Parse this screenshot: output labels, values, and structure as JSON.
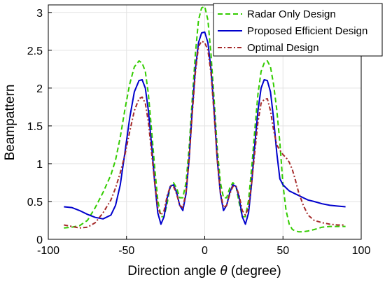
{
  "chart_data": {
    "type": "line",
    "xlabel_prefix": "Direction angle ",
    "xlabel_symbol": "θ",
    "xlabel_suffix": " (degree)",
    "ylabel": "Beampattern",
    "xlim": [
      -100,
      100
    ],
    "ylim": [
      0,
      3.1
    ],
    "xticks": [
      -100,
      -50,
      0,
      50,
      100
    ],
    "yticks": [
      0,
      0.5,
      1,
      1.5,
      2,
      2.5,
      3
    ],
    "xtick_labels": [
      "-100",
      "-50",
      "0",
      "50",
      "100"
    ],
    "ytick_labels": [
      "0",
      "0.5",
      "1",
      "1.5",
      "2",
      "2.5",
      "3"
    ],
    "grid": true,
    "legend_position": "top-right",
    "x": [
      -90,
      -85,
      -80,
      -75,
      -70,
      -65,
      -60,
      -57,
      -54,
      -51,
      -48,
      -45,
      -42,
      -40,
      -38,
      -36,
      -34,
      -32,
      -30,
      -28,
      -26,
      -24,
      -22,
      -20,
      -18,
      -16,
      -14,
      -12,
      -10,
      -8,
      -6,
      -4,
      -2,
      0,
      2,
      4,
      6,
      8,
      10,
      12,
      14,
      16,
      18,
      20,
      22,
      24,
      26,
      28,
      30,
      32,
      34,
      36,
      38,
      40,
      42,
      44,
      46,
      48,
      50,
      52,
      54,
      56,
      58,
      60,
      63,
      66,
      70,
      75,
      80,
      85,
      90
    ],
    "series": [
      {
        "name": "Radar Only Design",
        "color": "#33cc00",
        "dash": "7 4",
        "values": [
          0.15,
          0.16,
          0.18,
          0.25,
          0.42,
          0.62,
          0.85,
          1.05,
          1.35,
          1.72,
          2.05,
          2.28,
          2.36,
          2.33,
          2.22,
          1.92,
          1.45,
          0.95,
          0.52,
          0.3,
          0.3,
          0.48,
          0.7,
          0.75,
          0.68,
          0.55,
          0.55,
          0.75,
          1.2,
          1.85,
          2.45,
          2.9,
          3.06,
          3.08,
          2.9,
          2.45,
          1.85,
          1.2,
          0.75,
          0.55,
          0.55,
          0.68,
          0.75,
          0.7,
          0.48,
          0.3,
          0.3,
          0.52,
          0.95,
          1.45,
          1.92,
          2.22,
          2.33,
          2.36,
          2.28,
          2.05,
          1.72,
          1.28,
          0.72,
          0.38,
          0.2,
          0.13,
          0.11,
          0.1,
          0.1,
          0.11,
          0.13,
          0.16,
          0.17,
          0.17,
          0.17
        ]
      },
      {
        "name": "Proposed Efficient Design",
        "color": "#0000cc",
        "dash": "",
        "values": [
          0.43,
          0.42,
          0.38,
          0.33,
          0.29,
          0.27,
          0.32,
          0.45,
          0.72,
          1.15,
          1.6,
          1.95,
          2.1,
          2.11,
          2.0,
          1.7,
          1.25,
          0.75,
          0.35,
          0.2,
          0.3,
          0.55,
          0.7,
          0.72,
          0.62,
          0.45,
          0.38,
          0.6,
          1.05,
          1.7,
          2.25,
          2.6,
          2.73,
          2.74,
          2.6,
          2.25,
          1.7,
          1.05,
          0.6,
          0.38,
          0.45,
          0.62,
          0.72,
          0.7,
          0.55,
          0.3,
          0.2,
          0.35,
          0.75,
          1.25,
          1.7,
          2.0,
          2.11,
          2.1,
          1.95,
          1.6,
          1.15,
          0.8,
          0.72,
          0.68,
          0.64,
          0.62,
          0.6,
          0.58,
          0.55,
          0.52,
          0.5,
          0.47,
          0.45,
          0.44,
          0.43
        ]
      },
      {
        "name": "Optimal Design",
        "color": "#a52a2a",
        "dash": "6 3 2 3",
        "values": [
          0.19,
          0.17,
          0.15,
          0.16,
          0.22,
          0.35,
          0.52,
          0.68,
          0.88,
          1.12,
          1.42,
          1.7,
          1.86,
          1.88,
          1.8,
          1.55,
          1.15,
          0.75,
          0.42,
          0.32,
          0.38,
          0.58,
          0.7,
          0.7,
          0.6,
          0.45,
          0.42,
          0.62,
          1.05,
          1.65,
          2.2,
          2.55,
          2.62,
          2.6,
          2.5,
          2.2,
          1.65,
          1.05,
          0.62,
          0.42,
          0.45,
          0.6,
          0.7,
          0.7,
          0.58,
          0.38,
          0.32,
          0.42,
          0.75,
          1.15,
          1.55,
          1.8,
          1.85,
          1.86,
          1.7,
          1.45,
          1.25,
          1.18,
          1.12,
          1.08,
          1.02,
          0.92,
          0.78,
          0.62,
          0.45,
          0.32,
          0.25,
          0.22,
          0.2,
          0.19,
          0.19
        ]
      }
    ]
  }
}
